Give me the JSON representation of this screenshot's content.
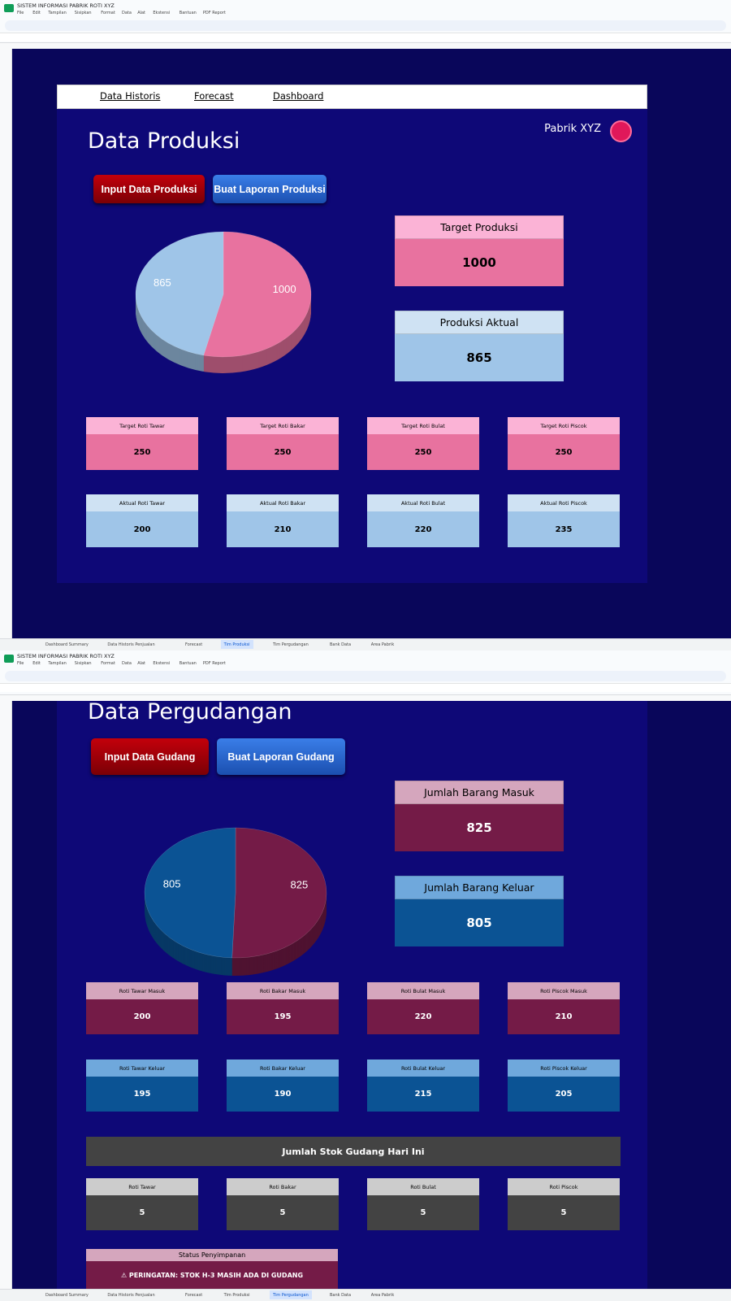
{
  "app": {
    "title": "SISTEM INFORMASI PABRIK ROTI XYZ",
    "menu": [
      "File",
      "Edit",
      "Tampilan",
      "Sisipkan",
      "Format",
      "Data",
      "Alat",
      "Ekstensi",
      "Bantuan",
      "PDF Report"
    ],
    "tabs": [
      "Dashboard Summary",
      "Data Historis Penjualan",
      "Forecast",
      "Tim Produksi",
      "Tim Pergudangan",
      "Bank Data",
      "Area Pabrik"
    ]
  },
  "screens": [
    {
      "active_tab": 3,
      "nav": [
        "Data Historis",
        "Forecast",
        "Dashboard"
      ],
      "brand": "Pabrik XYZ",
      "heading": "Data Produksi",
      "buttons": [
        "Input Data Produksi",
        "Buat Laporan Produksi"
      ],
      "chart_data": {
        "type": "pie",
        "values": [
          1000,
          865
        ],
        "colors": [
          "#e8729f",
          "#9fc5e8"
        ]
      },
      "summary": [
        {
          "label": "Target Produksi",
          "value": 1000
        },
        {
          "label": "Produksi Aktual",
          "value": 865
        }
      ],
      "rows": [
        [
          {
            "label": "Target Roti Tawar",
            "value": 250
          },
          {
            "label": "Target Roti Bakar",
            "value": 250
          },
          {
            "label": "Target Roti Bulat",
            "value": 250
          },
          {
            "label": "Target Roti Piscok",
            "value": 250
          }
        ],
        [
          {
            "label": "Aktual Roti Tawar",
            "value": 200
          },
          {
            "label": "Aktual Roti Bakar",
            "value": 210
          },
          {
            "label": "Aktual Roti Bulat",
            "value": 220
          },
          {
            "label": "Aktual Roti Piscok",
            "value": 235
          }
        ]
      ]
    },
    {
      "active_tab": 4,
      "heading": "Data Pergudangan",
      "buttons": [
        "Input Data Gudang",
        "Buat Laporan Gudang"
      ],
      "chart_data": {
        "type": "pie",
        "values": [
          825,
          805
        ],
        "colors": [
          "#741b47",
          "#0b5394"
        ]
      },
      "summary": [
        {
          "label": "Jumlah Barang Masuk",
          "value": 825
        },
        {
          "label": "Jumlah Barang Keluar",
          "value": 805
        }
      ],
      "rows": [
        [
          {
            "label": "Roti Tawar Masuk",
            "value": 200
          },
          {
            "label": "Roti Bakar Masuk",
            "value": 195
          },
          {
            "label": "Roti Bulat Masuk",
            "value": 220
          },
          {
            "label": "Roti Piscok Masuk",
            "value": 210
          }
        ],
        [
          {
            "label": "Roti Tawar Keluar",
            "value": 195
          },
          {
            "label": "Roti Bakar Keluar",
            "value": 190
          },
          {
            "label": "Roti Bulat Keluar",
            "value": 215
          },
          {
            "label": "Roti Piscok Keluar",
            "value": 205
          }
        ]
      ],
      "stock": {
        "title": "Jumlah Stok Gudang Hari Ini",
        "items": [
          {
            "label": "Roti Tawar",
            "value": 5
          },
          {
            "label": "Roti Bakar",
            "value": 5
          },
          {
            "label": "Roti Bulat",
            "value": 5
          },
          {
            "label": "Roti Piscok",
            "value": 5
          }
        ]
      },
      "status": {
        "label": "Status Penyimpanan",
        "message": "⚠ PERINGATAN: STOK H-3 MASIH ADA DI GUDANG"
      }
    }
  ]
}
